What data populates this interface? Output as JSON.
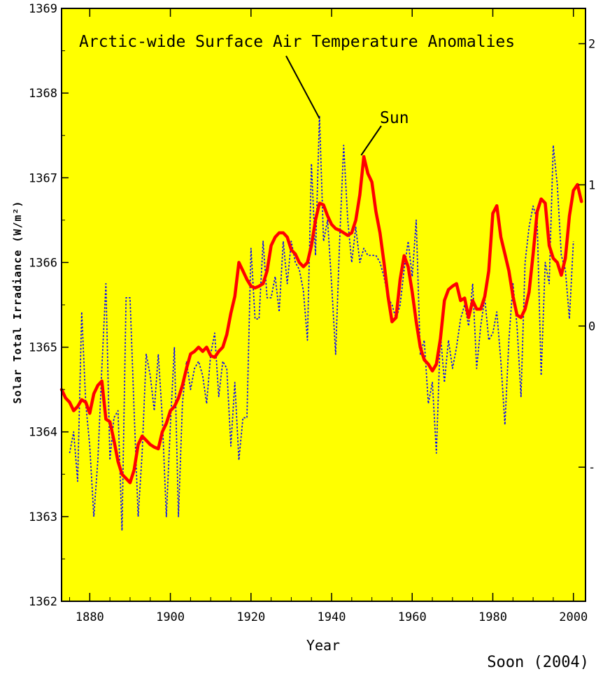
{
  "chart_data": {
    "type": "line",
    "xlabel": "Year",
    "ylabel": "Solar Total Irradiance (W/m²)",
    "xlim": [
      1873,
      2003
    ],
    "ylim": [
      1362,
      1369
    ],
    "y2lim": [
      -1.95,
      2.25
    ],
    "x_ticks": [
      1880,
      1900,
      1920,
      1940,
      1960,
      1980,
      2000
    ],
    "y_ticks": [
      1362,
      1363,
      1364,
      1365,
      1366,
      1367,
      1368,
      1369
    ],
    "y2_ticks": [
      {
        "value": -1,
        "label": "-"
      },
      {
        "value": 0,
        "label": "0"
      },
      {
        "value": 1,
        "label": "1"
      },
      {
        "value": 2,
        "label": "2"
      }
    ],
    "background_color": "#ffff00",
    "annotations": [
      {
        "text": "Arctic-wide Surface Air Temperature Anomalies",
        "target_series": "temperature",
        "target": [
          1937,
          1.49
        ]
      },
      {
        "text": "Sun",
        "target_series": "irradiance",
        "target": [
          1947,
          1367.25
        ]
      }
    ],
    "credit": "Soon (2004)",
    "series": [
      {
        "key": "irradiance",
        "axis": "left",
        "color": "#ff0000",
        "style": "solid",
        "x": [
          1873,
          1874,
          1875,
          1876,
          1877,
          1878,
          1879,
          1880,
          1881,
          1882,
          1883,
          1884,
          1885,
          1886,
          1887,
          1888,
          1889,
          1890,
          1891,
          1892,
          1893,
          1894,
          1895,
          1896,
          1897,
          1898,
          1899,
          1900,
          1901,
          1902,
          1903,
          1904,
          1905,
          1906,
          1907,
          1908,
          1909,
          1910,
          1911,
          1912,
          1913,
          1914,
          1915,
          1916,
          1917,
          1918,
          1919,
          1920,
          1921,
          1922,
          1923,
          1924,
          1925,
          1926,
          1927,
          1928,
          1929,
          1930,
          1931,
          1932,
          1933,
          1934,
          1935,
          1936,
          1937,
          1938,
          1939,
          1940,
          1941,
          1942,
          1943,
          1944,
          1945,
          1946,
          1947,
          1948,
          1949,
          1950,
          1951,
          1952,
          1953,
          1954,
          1955,
          1956,
          1957,
          1958,
          1959,
          1960,
          1961,
          1962,
          1963,
          1964,
          1965,
          1966,
          1967,
          1968,
          1969,
          1970,
          1971,
          1972,
          1973,
          1974,
          1975,
          1976,
          1977,
          1978,
          1979,
          1980,
          1981,
          1982,
          1983,
          1984,
          1985,
          1986,
          1987,
          1988,
          1989,
          1990,
          1991,
          1992,
          1993,
          1994,
          1995,
          1996,
          1997,
          1998,
          1999,
          2000,
          2001,
          2002
        ],
        "values": [
          1364.5,
          1364.4,
          1364.35,
          1364.25,
          1364.3,
          1364.38,
          1364.35,
          1364.22,
          1364.45,
          1364.55,
          1364.6,
          1364.15,
          1364.12,
          1363.9,
          1363.65,
          1363.5,
          1363.45,
          1363.4,
          1363.55,
          1363.85,
          1363.95,
          1363.9,
          1363.85,
          1363.82,
          1363.8,
          1364.0,
          1364.1,
          1364.25,
          1364.3,
          1364.4,
          1364.55,
          1364.75,
          1364.92,
          1364.95,
          1365.0,
          1364.95,
          1365.0,
          1364.9,
          1364.88,
          1364.95,
          1365.0,
          1365.15,
          1365.4,
          1365.6,
          1366.0,
          1365.9,
          1365.8,
          1365.72,
          1365.7,
          1365.72,
          1365.75,
          1365.9,
          1366.2,
          1366.3,
          1366.35,
          1366.35,
          1366.3,
          1366.15,
          1366.1,
          1366.0,
          1365.95,
          1366.0,
          1366.2,
          1366.5,
          1366.7,
          1366.68,
          1366.55,
          1366.45,
          1366.4,
          1366.38,
          1366.35,
          1366.32,
          1366.35,
          1366.5,
          1366.8,
          1367.25,
          1367.05,
          1366.95,
          1366.6,
          1366.35,
          1366.0,
          1365.6,
          1365.3,
          1365.35,
          1365.8,
          1366.08,
          1365.95,
          1365.65,
          1365.3,
          1365.0,
          1364.85,
          1364.8,
          1364.72,
          1364.8,
          1365.1,
          1365.55,
          1365.68,
          1365.72,
          1365.75,
          1365.55,
          1365.58,
          1365.35,
          1365.55,
          1365.45,
          1365.45,
          1365.6,
          1365.9,
          1366.58,
          1366.67,
          1366.3,
          1366.1,
          1365.9,
          1365.6,
          1365.38,
          1365.35,
          1365.45,
          1365.65,
          1366.1,
          1366.6,
          1366.75,
          1366.7,
          1366.2,
          1366.05,
          1366.0,
          1365.85,
          1366.05,
          1366.55,
          1366.85,
          1366.92,
          1366.72
        ]
      },
      {
        "key": "temperature",
        "axis": "right",
        "color": "#0000ff",
        "style": "dotted",
        "x": [
          1875,
          1876,
          1877,
          1878,
          1879,
          1880,
          1881,
          1882,
          1883,
          1884,
          1885,
          1886,
          1887,
          1888,
          1889,
          1890,
          1891,
          1892,
          1893,
          1894,
          1895,
          1896,
          1897,
          1898,
          1899,
          1900,
          1901,
          1902,
          1903,
          1904,
          1905,
          1906,
          1907,
          1908,
          1909,
          1910,
          1911,
          1912,
          1913,
          1914,
          1915,
          1916,
          1917,
          1918,
          1919,
          1920,
          1921,
          1922,
          1923,
          1924,
          1925,
          1926,
          1927,
          1928,
          1929,
          1930,
          1931,
          1932,
          1933,
          1934,
          1935,
          1936,
          1937,
          1938,
          1939,
          1940,
          1941,
          1942,
          1943,
          1944,
          1945,
          1946,
          1947,
          1948,
          1949,
          1950,
          1951,
          1952,
          1953,
          1954,
          1955,
          1956,
          1957,
          1958,
          1959,
          1960,
          1961,
          1962,
          1963,
          1964,
          1965,
          1966,
          1967,
          1968,
          1969,
          1970,
          1971,
          1972,
          1973,
          1974,
          1975,
          1976,
          1977,
          1978,
          1979,
          1980,
          1981,
          1982,
          1983,
          1984,
          1985,
          1986,
          1987,
          1988,
          1989,
          1990,
          1991,
          1992,
          1993,
          1994,
          1995,
          1996,
          1997,
          1998,
          1999,
          2000
        ],
        "values": [
          -0.9,
          -0.75,
          -1.1,
          0.1,
          -0.55,
          -0.85,
          -1.35,
          -0.95,
          -0.3,
          0.3,
          -0.95,
          -0.65,
          -0.6,
          -1.45,
          0.2,
          0.2,
          -0.6,
          -1.35,
          -0.9,
          -0.2,
          -0.35,
          -0.6,
          -0.2,
          -0.65,
          -1.35,
          -0.7,
          -0.15,
          -1.35,
          -0.55,
          -0.25,
          -0.45,
          -0.3,
          -0.25,
          -0.35,
          -0.55,
          -0.2,
          -0.05,
          -0.5,
          -0.25,
          -0.3,
          -0.85,
          -0.4,
          -0.95,
          -0.65,
          -0.65,
          0.55,
          0.05,
          0.05,
          0.6,
          0.2,
          0.2,
          0.35,
          0.1,
          0.6,
          0.3,
          0.6,
          0.45,
          0.4,
          0.25,
          -0.1,
          1.15,
          0.5,
          1.49,
          0.6,
          0.75,
          0.3,
          -0.2,
          0.6,
          1.28,
          0.75,
          0.45,
          0.7,
          0.45,
          0.55,
          0.5,
          0.5,
          0.5,
          0.45,
          0.35,
          0.2,
          0.15,
          0.05,
          0.15,
          0.4,
          0.6,
          0.35,
          0.75,
          -0.2,
          -0.1,
          -0.55,
          -0.4,
          -0.9,
          -0.05,
          -0.4,
          -0.1,
          -0.3,
          -0.15,
          0.05,
          0.15,
          0.0,
          0.3,
          -0.3,
          0.0,
          0.2,
          -0.1,
          -0.05,
          0.1,
          -0.25,
          -0.7,
          -0.1,
          0.3,
          0.0,
          -0.5,
          0.45,
          0.7,
          0.85,
          0.75,
          -0.35,
          0.45,
          0.3,
          1.28,
          1.0,
          0.5,
          0.4,
          0.05,
          0.6
        ]
      }
    ]
  }
}
